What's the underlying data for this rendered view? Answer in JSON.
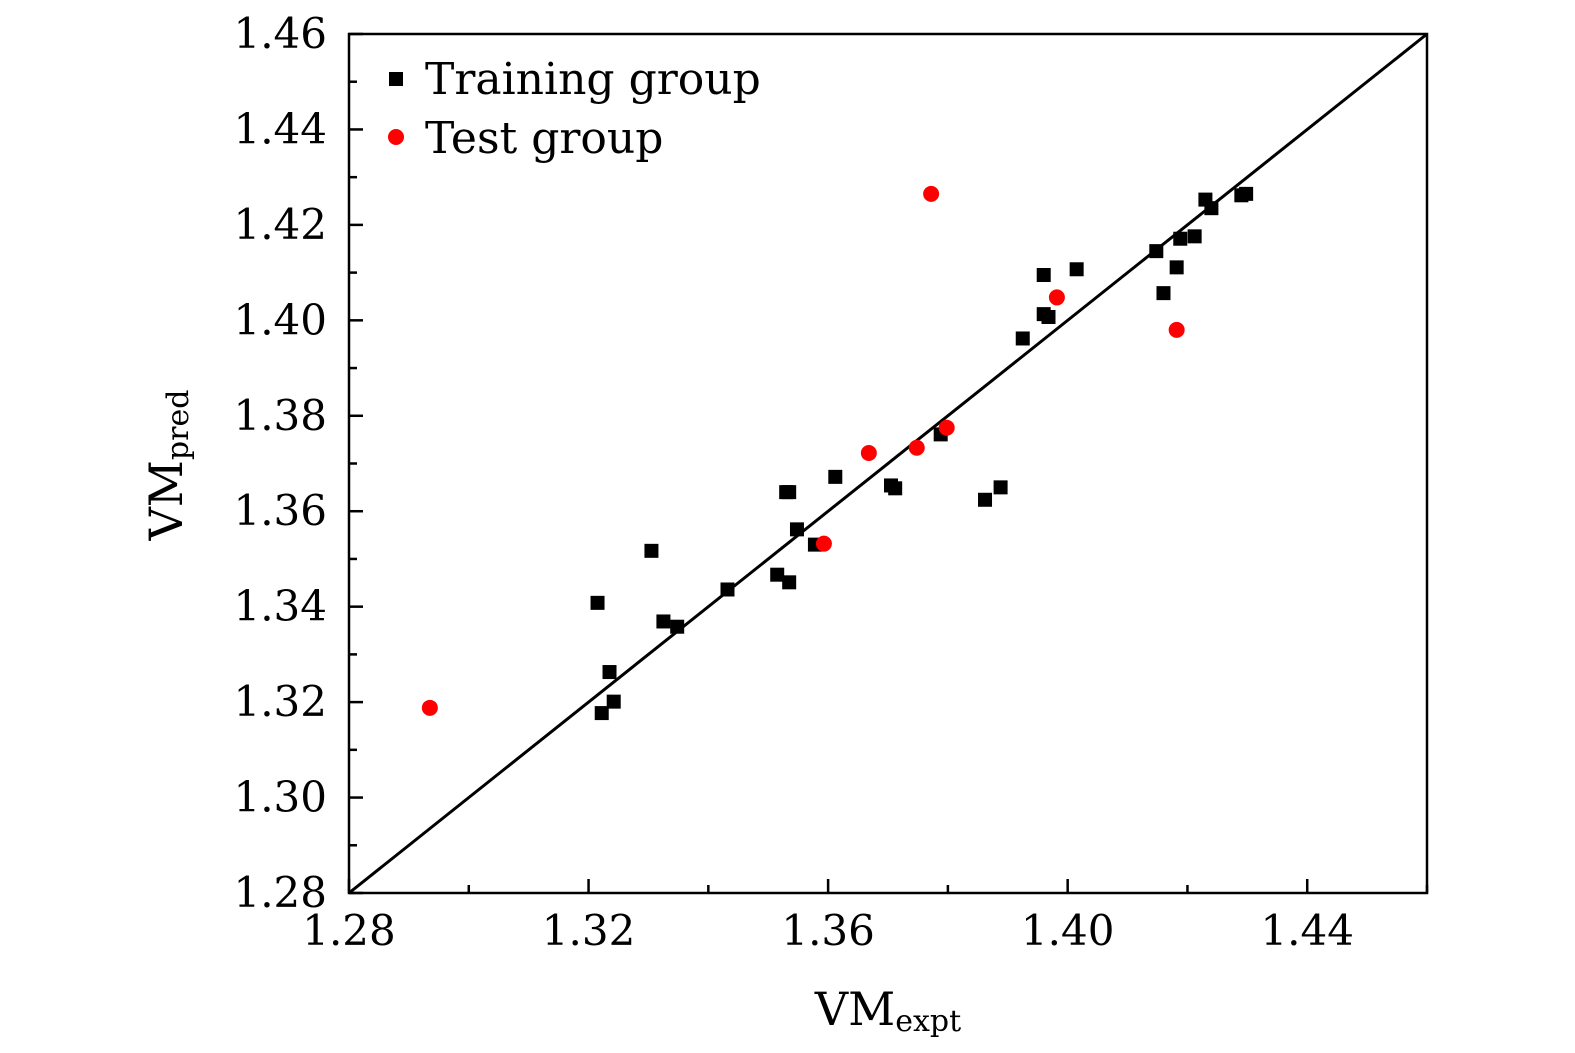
{
  "chart_data": {
    "type": "scatter",
    "title": "",
    "xlabel": {
      "main": "VM",
      "sub": "expt"
    },
    "ylabel": {
      "main": "VM",
      "sub": "pred"
    },
    "xlim": [
      1.28,
      1.46
    ],
    "ylim": [
      1.28,
      1.46
    ],
    "xticks": [
      "1.28",
      "1.32",
      "1.36",
      "1.40",
      "1.44"
    ],
    "xtick_values": [
      1.28,
      1.32,
      1.36,
      1.4,
      1.44
    ],
    "yticks": [
      "1.28",
      "1.30",
      "1.32",
      "1.34",
      "1.36",
      "1.38",
      "1.40",
      "1.42",
      "1.44",
      "1.46"
    ],
    "ytick_values": [
      1.28,
      1.3,
      1.32,
      1.34,
      1.36,
      1.38,
      1.4,
      1.42,
      1.44,
      1.46
    ],
    "grid": false,
    "legend_position": "top-left",
    "reference_line": {
      "label": "y = x",
      "from": [
        1.28,
        1.28
      ],
      "to": [
        1.46,
        1.46
      ]
    },
    "series": [
      {
        "name": "Training group",
        "marker": "square",
        "color": "#000000",
        "points": [
          [
            1.3215,
            1.3408
          ],
          [
            1.3222,
            1.3177
          ],
          [
            1.3235,
            1.3263
          ],
          [
            1.3242,
            1.3201
          ],
          [
            1.3305,
            1.3517
          ],
          [
            1.3325,
            1.3369
          ],
          [
            1.3348,
            1.3358
          ],
          [
            1.3432,
            1.3436
          ],
          [
            1.3515,
            1.3467
          ],
          [
            1.353,
            1.364
          ],
          [
            1.3535,
            1.3451
          ],
          [
            1.3548,
            1.3562
          ],
          [
            1.3535,
            1.364
          ],
          [
            1.3578,
            1.353
          ],
          [
            1.3612,
            1.3672
          ],
          [
            1.3705,
            1.3654
          ],
          [
            1.3712,
            1.3648
          ],
          [
            1.3788,
            1.3761
          ],
          [
            1.3862,
            1.3624
          ],
          [
            1.3888,
            1.365
          ],
          [
            1.3925,
            1.3962
          ],
          [
            1.396,
            1.4013
          ],
          [
            1.396,
            1.4095
          ],
          [
            1.3968,
            1.4007
          ],
          [
            1.4015,
            1.4107
          ],
          [
            1.4148,
            1.4145
          ],
          [
            1.416,
            1.4057
          ],
          [
            1.4182,
            1.4111
          ],
          [
            1.4188,
            1.4171
          ],
          [
            1.4212,
            1.4176
          ],
          [
            1.423,
            1.4253
          ],
          [
            1.424,
            1.4235
          ],
          [
            1.429,
            1.4262
          ],
          [
            1.4298,
            1.4265
          ]
        ]
      },
      {
        "name": "Test group",
        "marker": "circle",
        "color": "#ff0000",
        "points": [
          [
            1.2935,
            1.3188
          ],
          [
            1.3593,
            1.3532
          ],
          [
            1.3668,
            1.3722
          ],
          [
            1.3748,
            1.3733
          ],
          [
            1.3772,
            1.4265
          ],
          [
            1.3798,
            1.3775
          ],
          [
            1.3982,
            1.4048
          ],
          [
            1.4182,
            1.398
          ]
        ]
      }
    ]
  }
}
